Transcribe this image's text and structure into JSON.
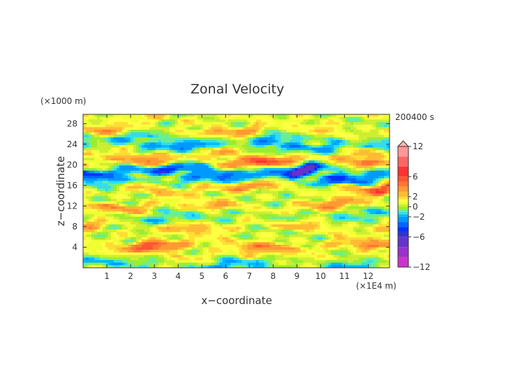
{
  "chart_data": {
    "type": "heatmap",
    "title": "Zonal Velocity",
    "xlabel": "x−coordinate",
    "ylabel": "z−coordinate",
    "x_unit": "(×1E4 m)",
    "y_unit": "(×1000 m)",
    "time_label": "200400 s",
    "xlim": [
      0,
      12.9
    ],
    "ylim": [
      0,
      29.8
    ],
    "x_ticks": [
      "1",
      "2",
      "3",
      "4",
      "5",
      "6",
      "7",
      "8",
      "9",
      "10",
      "11",
      "12"
    ],
    "y_ticks": [
      "4",
      "8",
      "12",
      "16",
      "20",
      "24",
      "28"
    ],
    "colorbar": {
      "levels": [
        -14,
        -12,
        -10,
        -8,
        -6,
        -5,
        -4,
        -3,
        -2,
        -1.5,
        -1,
        -0.5,
        0,
        0.5,
        1,
        1.5,
        2,
        3,
        4,
        5,
        6,
        8,
        10,
        12,
        14
      ],
      "colors": [
        "#ff33cc",
        "#cc33cc",
        "#9933cc",
        "#6633cc",
        "#3333cc",
        "#0033ff",
        "#0066ff",
        "#0099ff",
        "#00bbff",
        "#33ddee",
        "#66ee99",
        "#99ee33",
        "#ccee33",
        "#eeff33",
        "#ffff44",
        "#ffdd33",
        "#ffbb33",
        "#ff9933",
        "#ff7733",
        "#ff5533",
        "#ff3333",
        "#ff6666",
        "#ff9999",
        "#ffb3b3"
      ],
      "tick_labels": [
        "12",
        "6",
        "2",
        "0",
        "−2",
        "−6",
        "−12"
      ]
    },
    "bands": [
      {
        "z": 0.8,
        "v": -1.2
      },
      {
        "z": 2.5,
        "v": 1.0
      },
      {
        "z": 4.2,
        "v": 3.5
      },
      {
        "z": 6.0,
        "v": 0.6
      },
      {
        "z": 8.0,
        "v": 2.2
      },
      {
        "z": 10.0,
        "v": -1.0
      },
      {
        "z": 12.0,
        "v": 2.5
      },
      {
        "z": 14.0,
        "v": 0.4
      },
      {
        "z": 15.6,
        "v": 3.5
      },
      {
        "z": 17.0,
        "v": -2.5
      },
      {
        "z": 18.8,
        "v": -4.5
      },
      {
        "z": 20.5,
        "v": 4.0
      },
      {
        "z": 22.0,
        "v": 2.0
      },
      {
        "z": 23.5,
        "v": -2.0
      },
      {
        "z": 25.0,
        "v": -1.5
      },
      {
        "z": 26.5,
        "v": 2.5
      },
      {
        "z": 28.0,
        "v": 0.6
      },
      {
        "z": 29.5,
        "v": 1.0
      }
    ]
  }
}
